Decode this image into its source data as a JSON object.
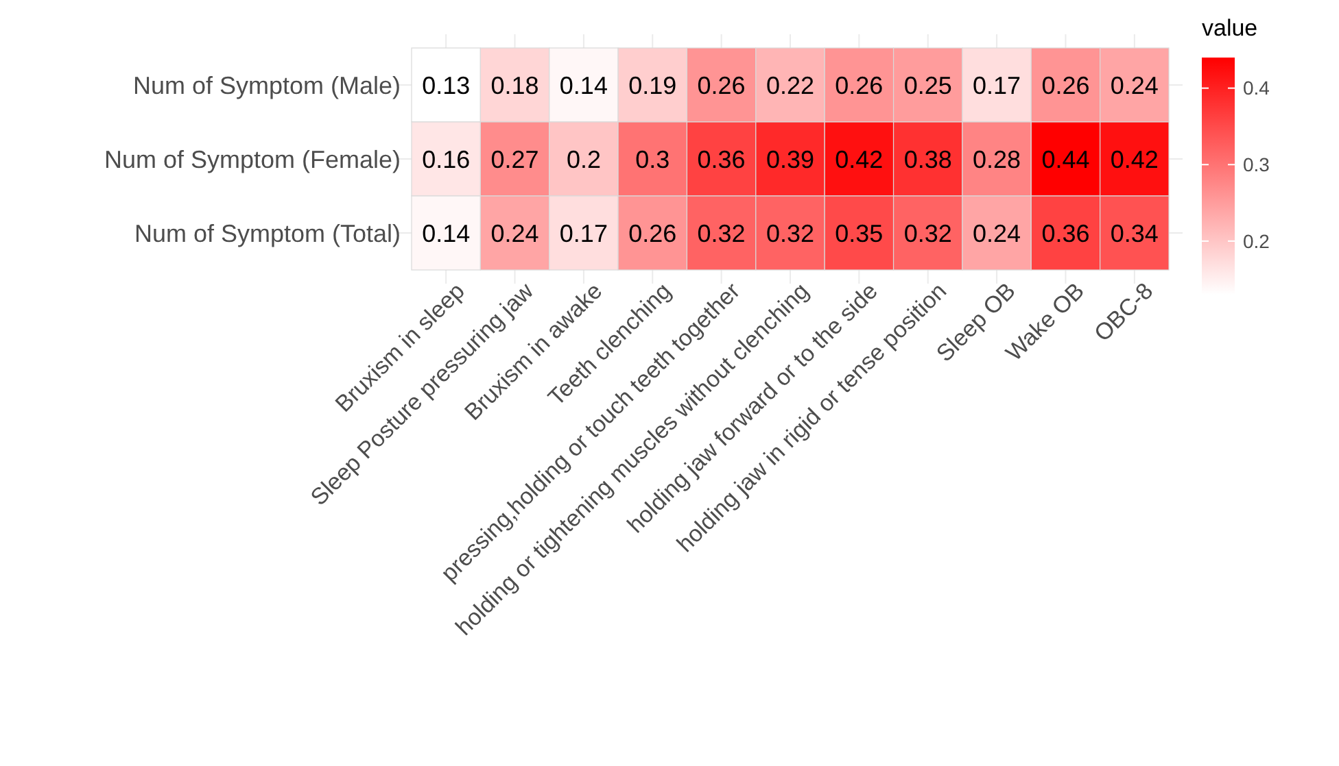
{
  "chart_data": {
    "type": "heatmap",
    "legend_title": "value",
    "categories": [
      "Bruxism in sleep",
      "Sleep Posture pressuring jaw",
      "Bruxism in awake",
      "Teeth clenching",
      "pressing,holding or touch teeth together",
      "holding or tightening muscles without clenching",
      "holding jaw forward or to the side",
      "holding jaw in rigid or tense position",
      "Sleep OB",
      "Wake OB",
      "OBC-8"
    ],
    "y_categories": [
      "Num of Symptom (Male)",
      "Num of Symptom (Female)",
      "Num of Symptom (Total)"
    ],
    "cells": [
      [
        0.13,
        0.18,
        0.14,
        0.19,
        0.26,
        0.22,
        0.26,
        0.25,
        0.17,
        0.26,
        0.24
      ],
      [
        0.16,
        0.27,
        0.2,
        0.3,
        0.36,
        0.39,
        0.42,
        0.38,
        0.28,
        0.44,
        0.42
      ],
      [
        0.14,
        0.24,
        0.17,
        0.26,
        0.32,
        0.32,
        0.35,
        0.32,
        0.24,
        0.36,
        0.34
      ]
    ],
    "clim": [
      0.13,
      0.44
    ],
    "cticks": [
      0.2,
      0.3,
      0.4
    ],
    "colors": [
      "#ffffff",
      "#ff0000"
    ],
    "data_labels": true,
    "grid": true
  }
}
